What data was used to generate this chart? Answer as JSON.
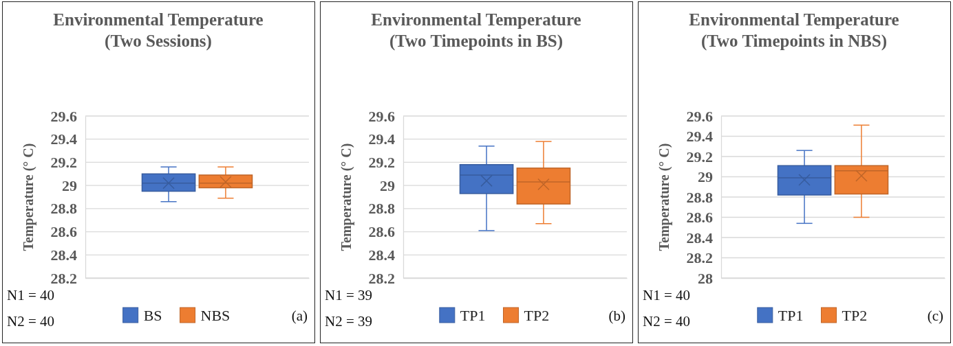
{
  "chart_data": [
    {
      "type": "box",
      "title": "Environmental Temperature\n(Two Sessions)",
      "ylabel": "Temperature (° C)",
      "categories": [
        null
      ],
      "ylim": [
        28.2,
        29.6
      ],
      "yticks": [
        28.2,
        28.4,
        28.6,
        28.8,
        29,
        29.2,
        29.4,
        29.6
      ],
      "grid": "y",
      "legend": "bottom",
      "tick_labels": "y",
      "annotations": [
        "N1 = 40",
        "N2 = 40",
        "(a)"
      ],
      "series": [
        {
          "name": "BS",
          "color": "#4472c4",
          "boxes": [
            {
              "low": 28.86,
              "q1": 28.95,
              "median": 29.02,
              "q3": 29.1,
              "high": 29.16,
              "mean": 29.02
            }
          ]
        },
        {
          "name": "NBS",
          "color": "#ed7d31",
          "boxes": [
            {
              "low": 28.89,
              "q1": 28.98,
              "median": 29.02,
              "q3": 29.09,
              "high": 29.16,
              "mean": 29.03
            }
          ]
        }
      ]
    },
    {
      "type": "box",
      "title": "Environmental Temperature\n(Two Timepoints in BS)",
      "ylabel": "Temperature (° C)",
      "categories": [
        null
      ],
      "ylim": [
        28.2,
        29.6
      ],
      "yticks": [
        28.2,
        28.4,
        28.6,
        28.8,
        29,
        29.2,
        29.4,
        29.6
      ],
      "grid": "y",
      "legend": "bottom",
      "tick_labels": "y",
      "annotations": [
        "N1 = 39",
        "N2 = 39",
        "(b)"
      ],
      "series": [
        {
          "name": "TP1",
          "color": "#4472c4",
          "boxes": [
            {
              "low": 28.61,
              "q1": 28.93,
              "median": 29.09,
              "q3": 29.18,
              "high": 29.34,
              "mean": 29.04
            }
          ]
        },
        {
          "name": "TP2",
          "color": "#ed7d31",
          "boxes": [
            {
              "low": 28.67,
              "q1": 28.84,
              "median": 29.03,
              "q3": 29.15,
              "high": 29.38,
              "mean": 29.01
            }
          ]
        }
      ]
    },
    {
      "type": "box",
      "title": "Environmental Temperature\n(Two Timepoints in NBS)",
      "ylabel": "Temperature (° C)",
      "categories": [
        null
      ],
      "ylim": [
        28,
        29.6
      ],
      "yticks": [
        28,
        28.2,
        28.4,
        28.6,
        28.8,
        29,
        29.2,
        29.4,
        29.6
      ],
      "grid": "y",
      "legend": "bottom",
      "tick_labels": "y",
      "annotations": [
        "N1 = 40",
        "N2 = 40",
        "(c)"
      ],
      "series": [
        {
          "name": "TP1",
          "color": "#4472c4",
          "boxes": [
            {
              "low": 28.54,
              "q1": 28.82,
              "median": 28.99,
              "q3": 29.11,
              "high": 29.26,
              "mean": 28.97
            }
          ]
        },
        {
          "name": "TP2",
          "color": "#ed7d31",
          "boxes": [
            {
              "low": 28.6,
              "q1": 28.83,
              "median": 29.06,
              "q3": 29.11,
              "high": 29.51,
              "mean": 29.01
            }
          ]
        }
      ]
    }
  ]
}
